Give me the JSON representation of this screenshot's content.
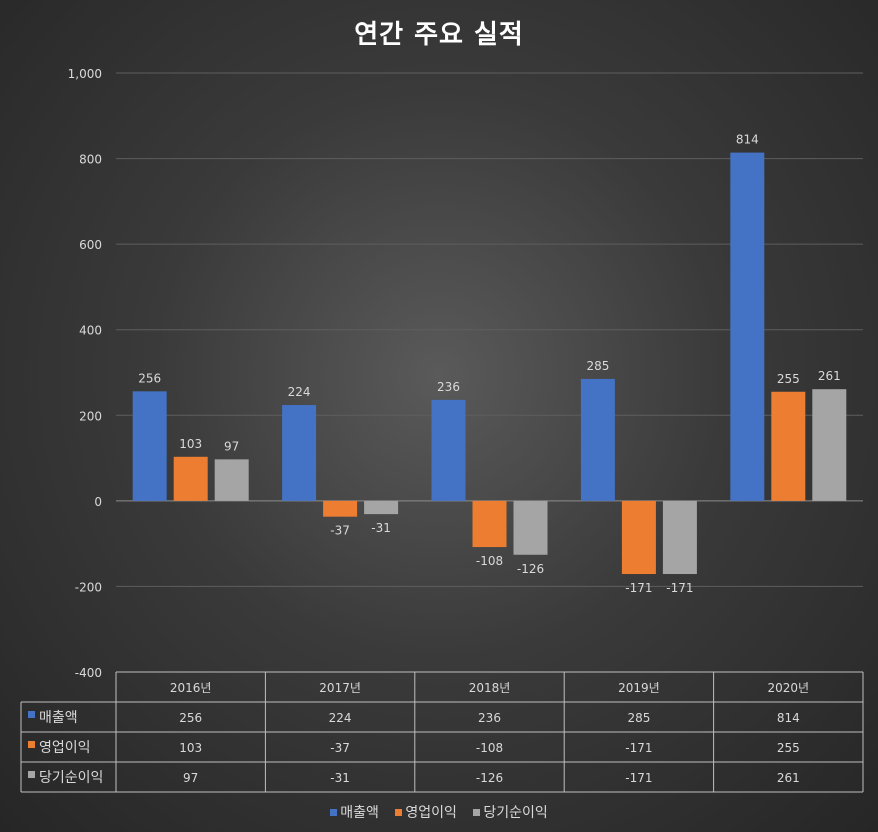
{
  "colors": {
    "background": "#3a3a3a",
    "grid": "#5e5e5e",
    "text": "#d9d9d9",
    "title": "#ffffff"
  },
  "chart_data": {
    "type": "bar",
    "title": "연간 주요 실적",
    "categories": [
      "2016년",
      "2017년",
      "2018년",
      "2019년",
      "2020년"
    ],
    "series": [
      {
        "name": "매출액",
        "color": "#4472c4",
        "values": [
          256,
          224,
          236,
          285,
          814
        ]
      },
      {
        "name": "영업이익",
        "color": "#ed7d31",
        "values": [
          103,
          -37,
          -108,
          -171,
          255
        ]
      },
      {
        "name": "당기순이익",
        "color": "#a5a5a5",
        "values": [
          97,
          -31,
          -126,
          -171,
          261
        ]
      }
    ],
    "ylim": [
      -400,
      1000
    ],
    "yticks": [
      -400,
      -200,
      0,
      200,
      400,
      600,
      800,
      1000
    ],
    "ytick_labels": [
      "-400",
      "-200",
      "0",
      "200",
      "400",
      "600",
      "800",
      "1,000"
    ],
    "data_table": true,
    "legend": "bottom",
    "grid": true,
    "xlabel": "",
    "ylabel": ""
  }
}
